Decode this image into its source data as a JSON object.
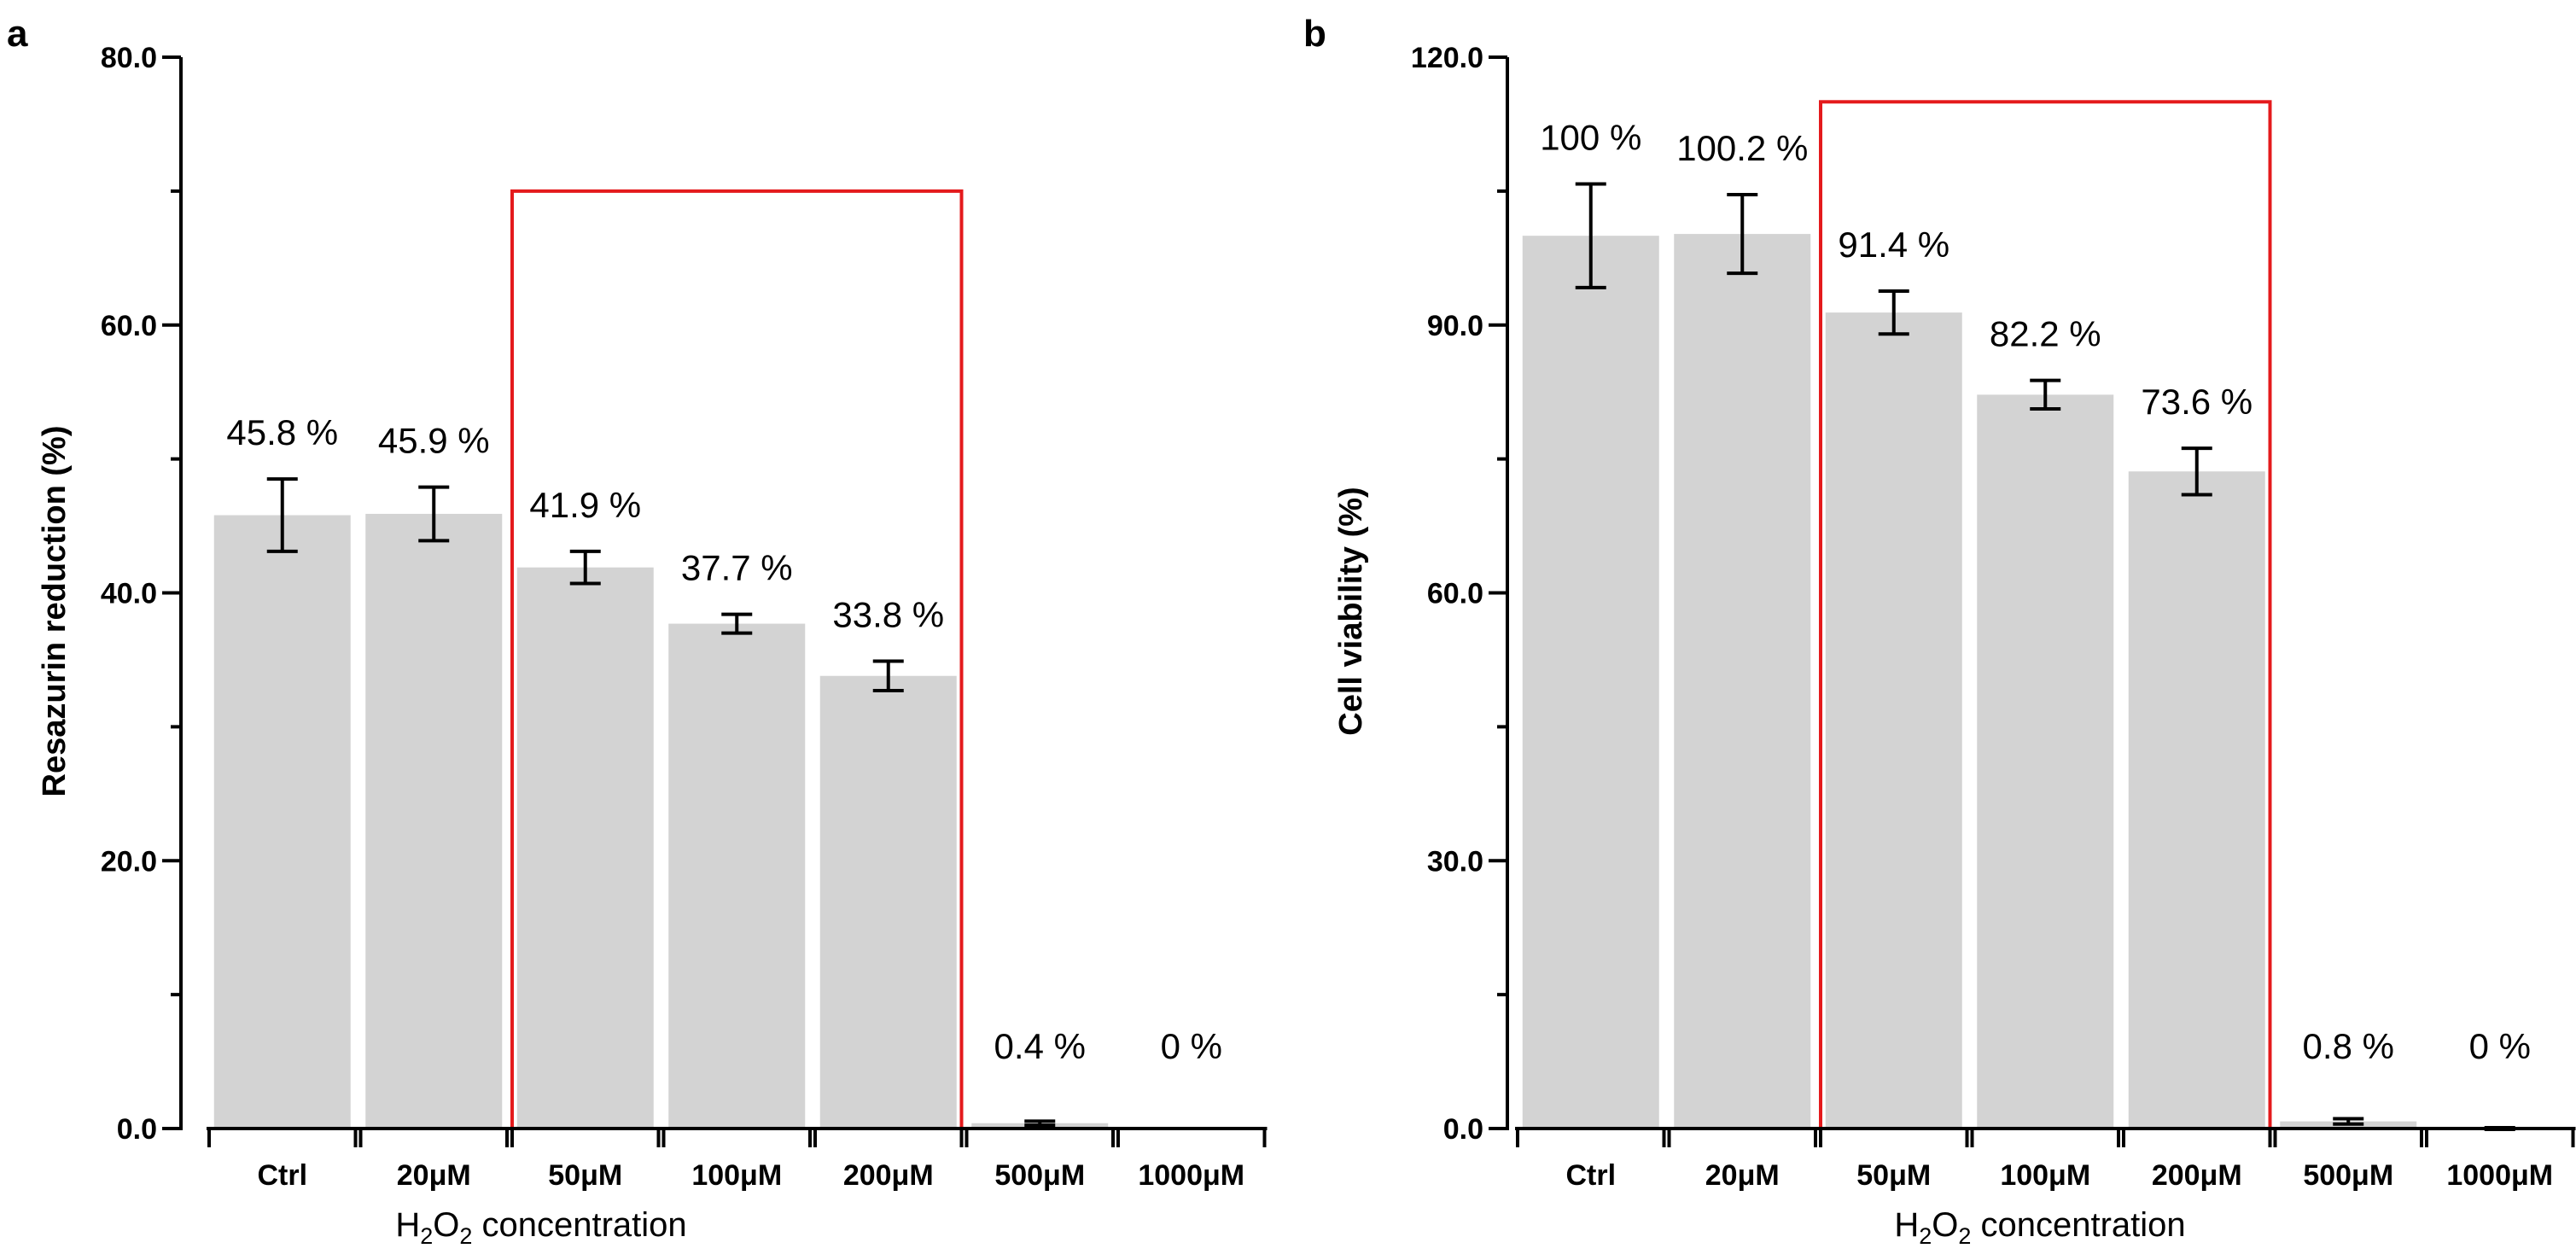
{
  "chart_data": [
    {
      "type": "bar",
      "panel": "a",
      "categories": [
        "Ctrl",
        "20μM",
        "50μM",
        "100μM",
        "200μM",
        "500μM",
        "1000μM"
      ],
      "values": [
        45.8,
        45.9,
        41.9,
        37.7,
        33.8,
        0.4,
        0.0
      ],
      "errors": [
        2.7,
        2.0,
        1.2,
        0.7,
        1.1,
        0.15,
        0.0
      ],
      "data_labels": [
        "45.8 %",
        "45.9 %",
        "41.9 %",
        "37.7 %",
        "33.8 %",
        "0.4 %",
        "0 %"
      ],
      "ylabel": "Resazurin reduction (%)",
      "xlabel": "H2O2 concentration",
      "ylim": [
        0,
        80
      ],
      "yticks": [
        0,
        20,
        40,
        60,
        80
      ],
      "ytick_labels": [
        "0.0",
        "20.0",
        "40.0",
        "60.0",
        "80.0"
      ],
      "highlight": {
        "from_index": 2,
        "to_index": 4,
        "top_value": 70,
        "color": "#e41a1c"
      },
      "bar_color": "#d3d3d3"
    },
    {
      "type": "bar",
      "panel": "b",
      "categories": [
        "Ctrl",
        "20μM",
        "50μM",
        "100μM",
        "200μM",
        "500μM",
        "1000μM"
      ],
      "values": [
        100.0,
        100.2,
        91.4,
        82.2,
        73.6,
        0.8,
        0.0
      ],
      "errors": [
        5.8,
        4.4,
        2.4,
        1.6,
        2.6,
        0.3,
        0.1
      ],
      "data_labels": [
        "100 %",
        "100.2 %",
        "91.4 %",
        "82.2 %",
        "73.6 %",
        "0.8 %",
        "0 %"
      ],
      "ylabel": "Cell viability (%)",
      "xlabel": "H2O2 concentration",
      "ylim": [
        0,
        120
      ],
      "yticks": [
        0,
        30,
        60,
        90,
        120
      ],
      "ytick_labels": [
        "0.0",
        "30.0",
        "60.0",
        "90.0",
        "120.0"
      ],
      "highlight": {
        "from_index": 2,
        "to_index": 4,
        "top_value": 115,
        "color": "#e41a1c"
      },
      "bar_color": "#d3d3d3"
    }
  ],
  "xlabel_parts": {
    "h": "H",
    "sub1": "2",
    "o": "O",
    "sub2": "2",
    "rest": " concentration"
  }
}
